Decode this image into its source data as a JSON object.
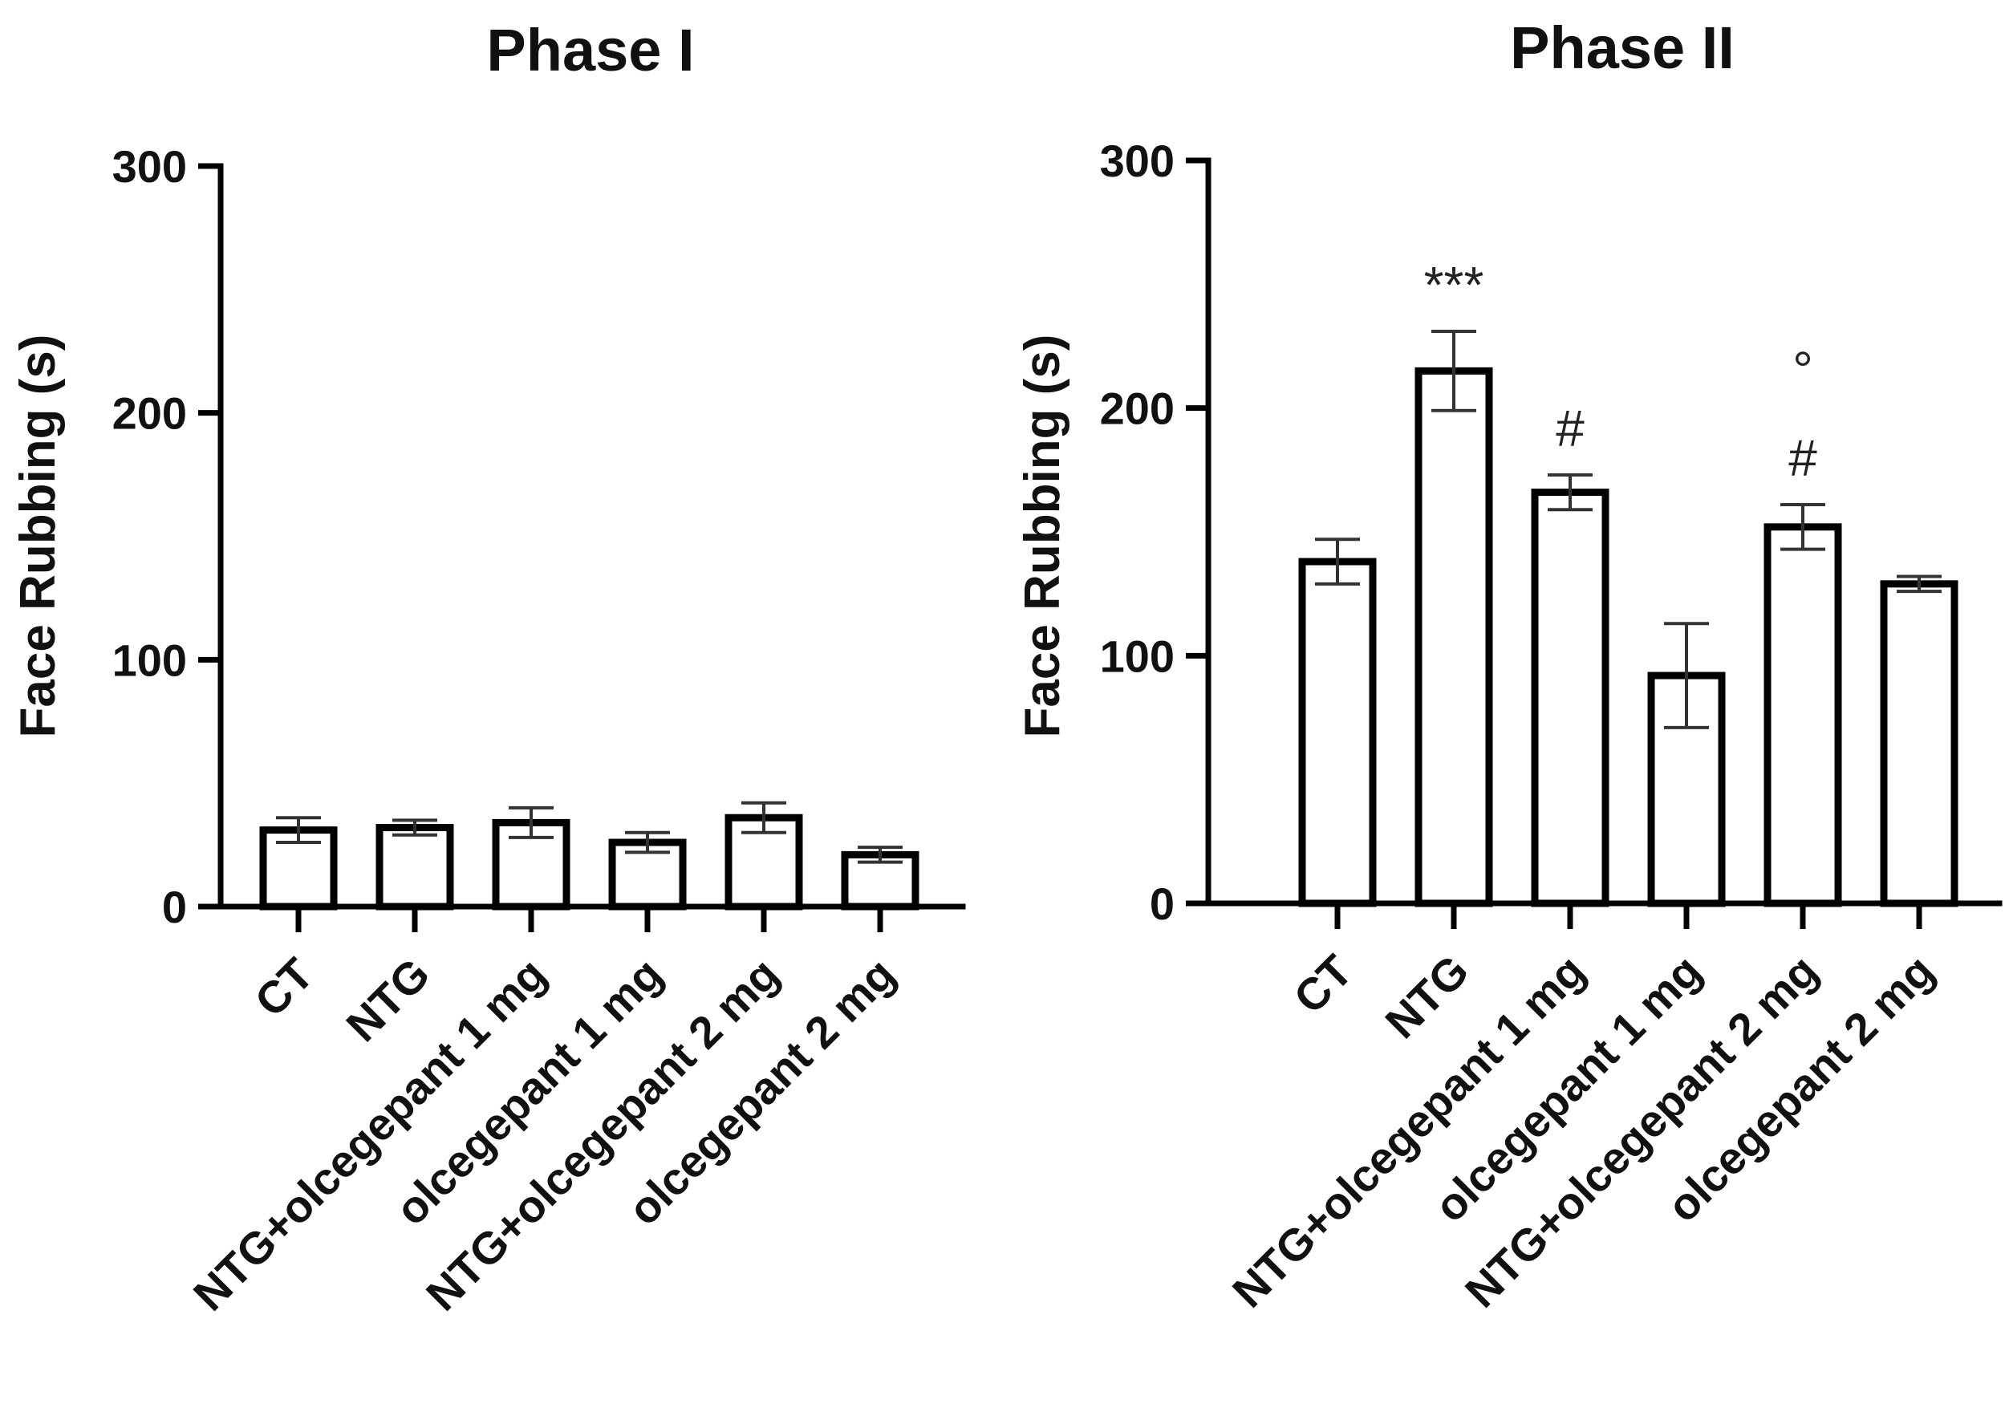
{
  "chart_data": [
    {
      "type": "bar",
      "title": "Phase I",
      "xlabel": "",
      "ylabel": "Face Rubbing (s)",
      "ylim": [
        0,
        300
      ],
      "yticks": [
        0,
        100,
        200,
        300
      ],
      "categories": [
        "CT",
        "NTG",
        "NTG+olcegepant 1 mg",
        "olcegepant 1 mg",
        "NTG+olcegepant 2 mg",
        "olcegepant 2 mg"
      ],
      "values": [
        31,
        32,
        34,
        26,
        36,
        21
      ],
      "errors": [
        5,
        3,
        6,
        4,
        6,
        3
      ],
      "annotations": [],
      "colors": {
        "bar_fill": "#ffffff",
        "bar_stroke": "#000000"
      }
    },
    {
      "type": "bar",
      "title": "Phase II",
      "xlabel": "",
      "ylabel": "Face Rubbing (s)",
      "ylim": [
        0,
        300
      ],
      "yticks": [
        0,
        100,
        200,
        300
      ],
      "categories": [
        "CT",
        "NTG",
        "NTG+olcegepant 1 mg",
        "olcegepant 1 mg",
        "NTG+olcegepant 2 mg",
        "olcegepant 2 mg"
      ],
      "values": [
        138,
        215,
        166,
        92,
        152,
        129
      ],
      "errors": [
        9,
        16,
        7,
        21,
        9,
        3
      ],
      "annotations": [
        {
          "category_index": 1,
          "lines": [
            "***"
          ]
        },
        {
          "category_index": 2,
          "lines": [
            "#"
          ]
        },
        {
          "category_index": 4,
          "lines": [
            "°",
            "#"
          ]
        }
      ],
      "colors": {
        "bar_fill": "#ffffff",
        "bar_stroke": "#000000"
      }
    }
  ]
}
